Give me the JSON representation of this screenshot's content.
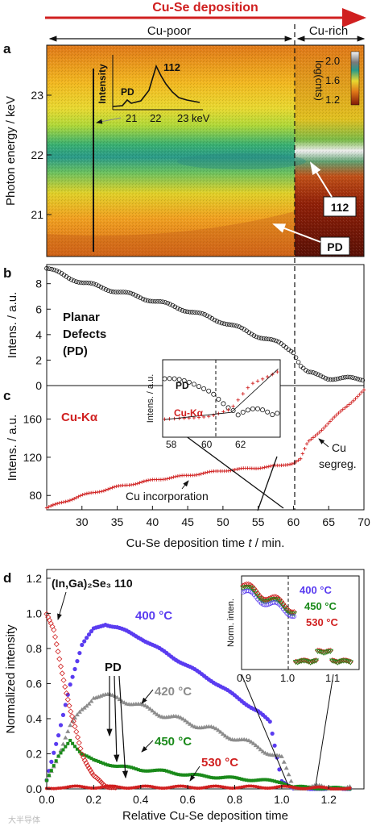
{
  "header": {
    "deposition": "Cu-Se deposition",
    "cu_poor": "Cu-poor",
    "cu_rich": "Cu-rich"
  },
  "colors": {
    "red": "#d02020",
    "blue": "#5a3cf0",
    "green": "#1a8a1a",
    "gray": "#8c8c8c",
    "black": "#111111"
  },
  "panel_a": {
    "letter": "a",
    "ylabel": "Photon energy / keV",
    "yticks": [
      "21",
      "22",
      "23"
    ],
    "label_112": "112",
    "label_pd": "PD",
    "colorbar_label": "log(cnts)",
    "colorbar_ticks": [
      "2.0",
      "1.6",
      "1.2"
    ],
    "inset": {
      "ylabel": "Intensity",
      "xunit": "keV",
      "xticks": [
        "21",
        "22",
        "23"
      ],
      "pd": "PD",
      "peak": "112"
    }
  },
  "chart_data": [
    {
      "type": "scatter",
      "panel": "b",
      "ylabel": "Intens. / a.u.",
      "annotation": "Planar Defects (PD)",
      "annotation_lines": [
        "Planar",
        "Defects",
        "(PD)"
      ],
      "ylim": [
        0,
        9.5
      ],
      "yticks": [
        "0",
        "2",
        "4",
        "6",
        "8"
      ],
      "xlim": [
        25,
        70
      ],
      "series": [
        {
          "x": [
            25,
            30,
            35,
            40,
            45,
            50,
            55,
            58,
            60,
            61,
            62,
            65,
            70
          ],
          "y": [
            9.2,
            8.1,
            7.4,
            6.7,
            5.9,
            5.0,
            3.9,
            3.3,
            2.7,
            1.6,
            1.0,
            0.6,
            0.5
          ]
        }
      ]
    },
    {
      "type": "line",
      "panel": "c",
      "ylabel": "Intens. / a.u.",
      "xlabel": "Cu-Se deposition time t / min.",
      "xlabel_pre": "Cu-Se deposition time ",
      "xlabel_var": "t",
      "xlabel_post": " / min.",
      "series_label": "Cu-Kα",
      "xlim": [
        25,
        70
      ],
      "ylim": [
        65,
        195
      ],
      "xticks": [
        "30",
        "35",
        "40",
        "45",
        "50",
        "55",
        "60",
        "65",
        "70"
      ],
      "yticks": [
        "80",
        "120",
        "160"
      ],
      "annotations": [
        "Cu incorporation",
        "Cu",
        "segreg."
      ],
      "inset": {
        "ylabel": "Intens. / a.u.",
        "xticks": [
          "58",
          "60",
          "62"
        ],
        "pd": "PD",
        "cuka": "Cu-Kα"
      },
      "series": [
        {
          "name": "Cu-Kα",
          "x": [
            25,
            30,
            35,
            40,
            45,
            50,
            55,
            58,
            60,
            61,
            62,
            65,
            70
          ],
          "y": [
            67,
            80,
            89,
            96,
            101,
            106,
            109,
            111,
            114,
            118,
            135,
            156,
            190
          ]
        }
      ]
    },
    {
      "type": "scatter",
      "panel": "d",
      "title": "(In,Ga)₂Se₃ 110",
      "ylabel": "Normalized intensity",
      "xlabel": "Relative Cu-Se deposition time",
      "xlim": [
        0,
        1.35
      ],
      "ylim": [
        0,
        1.25
      ],
      "xticks": [
        "0.0",
        "0.2",
        "0.4",
        "0.6",
        "0.8",
        "1.0",
        "1.2"
      ],
      "yticks": [
        "0.0",
        "0.2",
        "0.4",
        "0.6",
        "0.8",
        "1.0",
        "1.2"
      ],
      "pd_label": "PD",
      "series": [
        {
          "name": "400 °C",
          "x": [
            0,
            0.05,
            0.1,
            0.15,
            0.2,
            0.25,
            0.3,
            0.4,
            0.5,
            0.6,
            0.7,
            0.8,
            0.9,
            0.95,
            1.0,
            1.05,
            1.3
          ],
          "y": [
            0.05,
            0.3,
            0.6,
            0.82,
            0.91,
            0.94,
            0.92,
            0.86,
            0.78,
            0.7,
            0.62,
            0.53,
            0.44,
            0.38,
            0.05,
            0.0,
            0.0
          ]
        },
        {
          "name": "420 °C",
          "x": [
            0,
            0.05,
            0.1,
            0.15,
            0.2,
            0.3,
            0.4,
            0.5,
            0.6,
            0.7,
            0.8,
            0.9,
            1.0,
            1.05,
            1.3
          ],
          "y": [
            0.05,
            0.2,
            0.35,
            0.45,
            0.53,
            0.52,
            0.47,
            0.42,
            0.38,
            0.34,
            0.29,
            0.24,
            0.17,
            0.01,
            0.0
          ]
        },
        {
          "name": "450 °C",
          "x": [
            0,
            0.05,
            0.1,
            0.15,
            0.2,
            0.3,
            0.4,
            0.5,
            0.6,
            0.7,
            0.8,
            0.9,
            1.0,
            1.05,
            1.3
          ],
          "y": [
            0.05,
            0.18,
            0.28,
            0.2,
            0.16,
            0.13,
            0.11,
            0.1,
            0.08,
            0.07,
            0.06,
            0.05,
            0.04,
            0.01,
            0.0
          ]
        },
        {
          "name": "530 °C",
          "x": [
            0,
            0.05,
            0.1,
            0.15,
            0.2,
            0.4,
            0.6,
            0.8,
            1.0,
            1.3
          ],
          "y": [
            0.0,
            0.01,
            0.01,
            0.01,
            0.01,
            0.01,
            0.01,
            0.01,
            0.01,
            0.0
          ]
        },
        {
          "name": "(In,Ga)₂Se₃ 110",
          "x": [
            0,
            0.03,
            0.06,
            0.1,
            0.15,
            0.2,
            0.25,
            0.3
          ],
          "y": [
            1.0,
            0.9,
            0.7,
            0.45,
            0.2,
            0.07,
            0.02,
            0.0
          ]
        }
      ],
      "inset": {
        "ylabel": "Norm. inten.",
        "xticks": [
          "0.9",
          "1.0",
          "1.1"
        ],
        "labels": [
          "400 °C",
          "450 °C",
          "530 °C"
        ]
      }
    }
  ],
  "letters": {
    "b": "b",
    "c": "c",
    "d": "d"
  },
  "watermark": "大半导体"
}
